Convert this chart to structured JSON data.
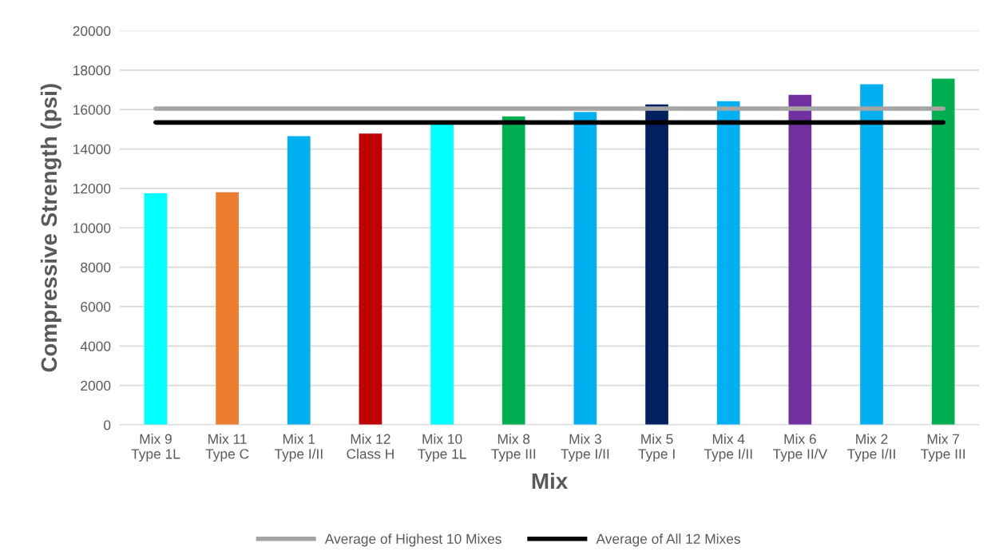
{
  "chart_data": {
    "type": "bar",
    "categories": [
      "Mix 9\nType 1L",
      "Mix 11\nType C",
      "Mix 1\nType I/II",
      "Mix 12\nClass H",
      "Mix 10\nType 1L",
      "Mix 8\nType III",
      "Mix 3\nType I/II",
      "Mix 5\nType I",
      "Mix 4\nType I/II",
      "Mix 6\nType II/V",
      "Mix 2\nType I/II",
      "Mix 7\nType III"
    ],
    "values": [
      11750,
      11800,
      14650,
      14780,
      15350,
      15650,
      15880,
      16260,
      16420,
      16750,
      17280,
      17570
    ],
    "colors": [
      "#00ffff",
      "#ed7d31",
      "#00b0f0",
      "#c00000",
      "#00ffff",
      "#00b050",
      "#00b0f0",
      "#002060",
      "#00b0f0",
      "#7030a0",
      "#00b0f0",
      "#00b050"
    ],
    "xlabel": "Mix",
    "ylabel": "Compressive Strength (psi)",
    "ylim": [
      0,
      20000
    ],
    "yticks": [
      0,
      2000,
      4000,
      6000,
      8000,
      10000,
      12000,
      14000,
      16000,
      18000,
      20000
    ],
    "grid": "y",
    "legend": "bottom",
    "ref_lines": [
      {
        "axis": "y",
        "value": 16050,
        "label": "Average of Highest 10 Mixes",
        "color": "#a5a5a5"
      },
      {
        "axis": "y",
        "value": 15345,
        "label": "Average of All 12 Mixes",
        "color": "#000000"
      }
    ]
  }
}
